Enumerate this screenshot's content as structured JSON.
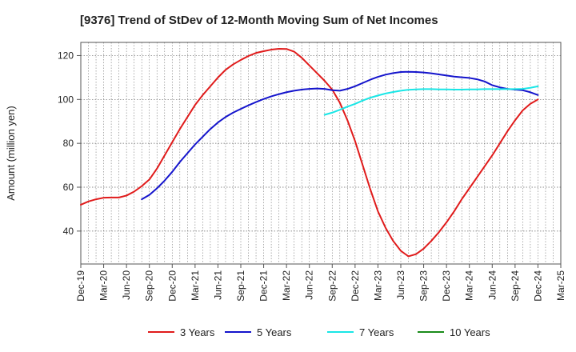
{
  "chart_data": {
    "type": "line",
    "title": "[9376]  Trend of StDev of 12-Month Moving Sum of Net Incomes",
    "xlabel": "",
    "ylabel": "Amount (million yen)",
    "ylim": [
      25,
      126
    ],
    "yticks": [
      40,
      60,
      80,
      100,
      120
    ],
    "xticks": [
      "Dec-19",
      "Mar-20",
      "Jun-20",
      "Sep-20",
      "Dec-20",
      "Mar-21",
      "Jun-21",
      "Sep-21",
      "Dec-21",
      "Mar-22",
      "Jun-22",
      "Sep-22",
      "Dec-22",
      "Mar-23",
      "Jun-23",
      "Sep-23",
      "Dec-23",
      "Mar-24",
      "Jun-24",
      "Sep-24",
      "Dec-24",
      "Mar-25"
    ],
    "grid": true,
    "legend_position": "bottom",
    "series": [
      {
        "name": "3 Years",
        "color": "#e01b1b",
        "points": [
          [
            "Dec-19",
            52
          ],
          [
            "Jan-20",
            53.5
          ],
          [
            "Feb-20",
            54.5
          ],
          [
            "Mar-20",
            55.2
          ],
          [
            "Apr-20",
            55.3
          ],
          [
            "May-20",
            55.3
          ],
          [
            "Jun-20",
            56.2
          ],
          [
            "Jul-20",
            58
          ],
          [
            "Aug-20",
            60.5
          ],
          [
            "Sep-20",
            63.5
          ],
          [
            "Oct-20",
            68.5
          ],
          [
            "Nov-20",
            74.5
          ],
          [
            "Dec-20",
            80.5
          ],
          [
            "Jan-21",
            86.5
          ],
          [
            "Feb-21",
            92
          ],
          [
            "Mar-21",
            97.5
          ],
          [
            "Apr-21",
            102
          ],
          [
            "May-21",
            106
          ],
          [
            "Jun-21",
            110
          ],
          [
            "Jul-21",
            113.5
          ],
          [
            "Aug-21",
            116
          ],
          [
            "Sep-21",
            118
          ],
          [
            "Oct-21",
            119.8
          ],
          [
            "Nov-21",
            121.2
          ],
          [
            "Dec-21",
            122
          ],
          [
            "Jan-22",
            122.7
          ],
          [
            "Feb-22",
            123.1
          ],
          [
            "Mar-22",
            123
          ],
          [
            "Apr-22",
            121.8
          ],
          [
            "May-22",
            119
          ],
          [
            "Jun-22",
            115.5
          ],
          [
            "Jul-22",
            112
          ],
          [
            "Aug-22",
            108.5
          ],
          [
            "Sep-22",
            104.5
          ],
          [
            "Oct-22",
            98.5
          ],
          [
            "Nov-22",
            90.5
          ],
          [
            "Dec-22",
            81
          ],
          [
            "Jan-23",
            70
          ],
          [
            "Feb-23",
            59
          ],
          [
            "Mar-23",
            49
          ],
          [
            "Apr-23",
            41.5
          ],
          [
            "May-23",
            35.5
          ],
          [
            "Jun-23",
            31
          ],
          [
            "Jul-23",
            28.5
          ],
          [
            "Aug-23",
            29.5
          ],
          [
            "Sep-23",
            32
          ],
          [
            "Oct-23",
            35.5
          ],
          [
            "Nov-23",
            39.5
          ],
          [
            "Dec-23",
            44
          ],
          [
            "Jan-24",
            49
          ],
          [
            "Feb-24",
            54.5
          ],
          [
            "Mar-24",
            59.5
          ],
          [
            "Apr-24",
            64.5
          ],
          [
            "May-24",
            69.5
          ],
          [
            "Jun-24",
            74.5
          ],
          [
            "Jul-24",
            80
          ],
          [
            "Aug-24",
            85.5
          ],
          [
            "Sep-24",
            90.5
          ],
          [
            "Oct-24",
            95
          ],
          [
            "Nov-24",
            98
          ],
          [
            "Dec-24",
            100
          ]
        ]
      },
      {
        "name": "5 Years",
        "color": "#1414cc",
        "points": [
          [
            "Aug-20",
            54.5
          ],
          [
            "Sep-20",
            56.5
          ],
          [
            "Oct-20",
            59.5
          ],
          [
            "Nov-20",
            63
          ],
          [
            "Dec-20",
            67
          ],
          [
            "Jan-21",
            71.5
          ],
          [
            "Feb-21",
            75.5
          ],
          [
            "Mar-21",
            79.5
          ],
          [
            "Apr-21",
            83
          ],
          [
            "May-21",
            86.5
          ],
          [
            "Jun-21",
            89.5
          ],
          [
            "Jul-21",
            92
          ],
          [
            "Aug-21",
            94
          ],
          [
            "Sep-21",
            95.7
          ],
          [
            "Oct-21",
            97.3
          ],
          [
            "Nov-21",
            98.8
          ],
          [
            "Dec-21",
            100.2
          ],
          [
            "Jan-22",
            101.4
          ],
          [
            "Feb-22",
            102.4
          ],
          [
            "Mar-22",
            103.3
          ],
          [
            "Apr-22",
            104
          ],
          [
            "May-22",
            104.5
          ],
          [
            "Jun-22",
            104.8
          ],
          [
            "Jul-22",
            105
          ],
          [
            "Aug-22",
            104.8
          ],
          [
            "Sep-22",
            104.2
          ],
          [
            "Oct-22",
            104
          ],
          [
            "Nov-22",
            104.8
          ],
          [
            "Dec-22",
            106
          ],
          [
            "Jan-23",
            107.5
          ],
          [
            "Feb-23",
            109
          ],
          [
            "Mar-23",
            110.3
          ],
          [
            "Apr-23",
            111.3
          ],
          [
            "May-23",
            112
          ],
          [
            "Jun-23",
            112.5
          ],
          [
            "Jul-23",
            112.6
          ],
          [
            "Aug-23",
            112.5
          ],
          [
            "Sep-23",
            112.3
          ],
          [
            "Oct-23",
            111.9
          ],
          [
            "Nov-23",
            111.4
          ],
          [
            "Dec-23",
            110.9
          ],
          [
            "Jan-24",
            110.4
          ],
          [
            "Feb-24",
            110.1
          ],
          [
            "Mar-24",
            109.8
          ],
          [
            "Apr-24",
            109.2
          ],
          [
            "May-24",
            108.2
          ],
          [
            "Jun-24",
            106.5
          ],
          [
            "Jul-24",
            105.5
          ],
          [
            "Aug-24",
            104.8
          ],
          [
            "Sep-24",
            104.5
          ],
          [
            "Oct-24",
            104.2
          ],
          [
            "Nov-24",
            103.3
          ],
          [
            "Dec-24",
            102
          ]
        ]
      },
      {
        "name": "7 Years",
        "color": "#19e6e6",
        "points": [
          [
            "Aug-22",
            93
          ],
          [
            "Sep-22",
            94
          ],
          [
            "Oct-22",
            95.3
          ],
          [
            "Nov-22",
            96.7
          ],
          [
            "Dec-22",
            98
          ],
          [
            "Jan-23",
            99.5
          ],
          [
            "Feb-23",
            100.8
          ],
          [
            "Mar-23",
            101.8
          ],
          [
            "Apr-23",
            102.7
          ],
          [
            "May-23",
            103.4
          ],
          [
            "Jun-23",
            104
          ],
          [
            "Jul-23",
            104.4
          ],
          [
            "Aug-23",
            104.6
          ],
          [
            "Sep-23",
            104.7
          ],
          [
            "Oct-23",
            104.7
          ],
          [
            "Nov-23",
            104.6
          ],
          [
            "Dec-23",
            104.6
          ],
          [
            "Jan-24",
            104.5
          ],
          [
            "Feb-24",
            104.5
          ],
          [
            "Mar-24",
            104.6
          ],
          [
            "Apr-24",
            104.6
          ],
          [
            "May-24",
            104.7
          ],
          [
            "Jun-24",
            104.7
          ],
          [
            "Jul-24",
            104.7
          ],
          [
            "Aug-24",
            104.7
          ],
          [
            "Sep-24",
            104.7
          ],
          [
            "Oct-24",
            104.8
          ],
          [
            "Nov-24",
            105.3
          ],
          [
            "Dec-24",
            106
          ]
        ]
      },
      {
        "name": "10 Years",
        "color": "#1a8c1a",
        "points": []
      }
    ]
  }
}
